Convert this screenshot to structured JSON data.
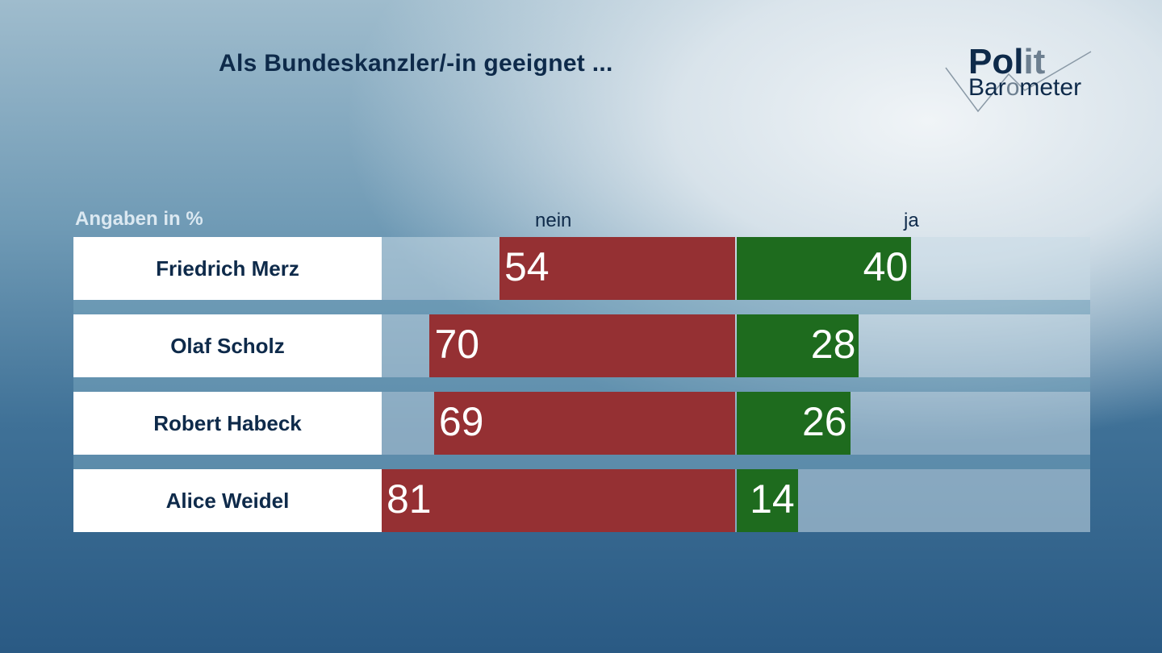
{
  "header": {
    "title": "Als Bundeskanzler/-in geeignet ..."
  },
  "logo": {
    "line1_a": "Pol",
    "line1_b": "it",
    "line2_a": "Bar",
    "line2_b": "o",
    "line2_c": "meter"
  },
  "chart_data": {
    "type": "bar",
    "orientation": "horizontal-diverging",
    "unit_label": "Angaben in %",
    "categories": [
      "Friedrich Merz",
      "Olaf Scholz",
      "Robert Habeck",
      "Alice Weidel"
    ],
    "series": [
      {
        "name": "nein",
        "values": [
          54,
          70,
          69,
          81
        ],
        "color": "#953033"
      },
      {
        "name": "ja",
        "values": [
          40,
          28,
          26,
          14
        ],
        "color": "#1e6b1e"
      }
    ],
    "xlim": [
      -81,
      81
    ]
  }
}
